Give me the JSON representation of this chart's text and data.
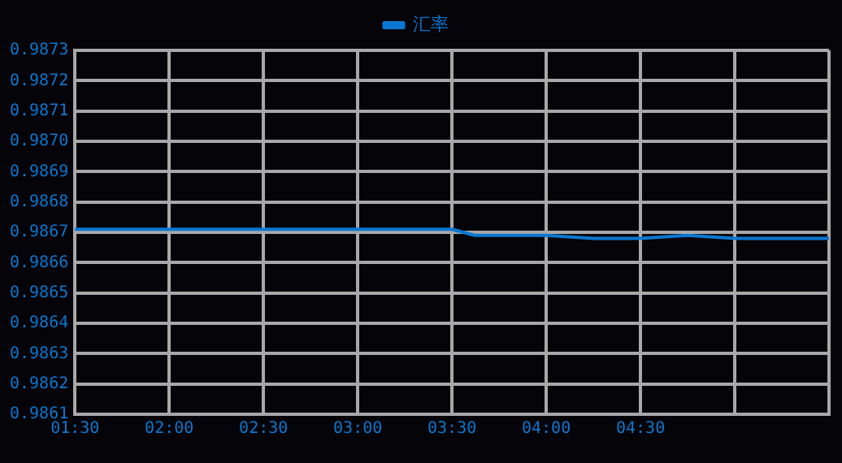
{
  "chart_data": {
    "type": "line",
    "legend": "top",
    "grid": true,
    "marker": "none",
    "line_style": "solid",
    "x": [
      1.5,
      1.75,
      2,
      2.25,
      2.5,
      2.75,
      3,
      3.25,
      3.5,
      3.62,
      3.75,
      4,
      4.25,
      4.5,
      4.75,
      5,
      5.25,
      5.5
    ],
    "series": [
      {
        "name": "汇率",
        "color": "#0a78d2",
        "values": [
          0.98671,
          0.98671,
          0.98671,
          0.98671,
          0.98671,
          0.98671,
          0.98671,
          0.98671,
          0.98671,
          0.98669,
          0.98669,
          0.98669,
          0.98668,
          0.98668,
          0.98669,
          0.98668,
          0.98668,
          0.98668
        ]
      }
    ],
    "xlim": [
      1.5,
      5.5
    ],
    "xticks": [
      {
        "value": 1.5,
        "label": "01:30"
      },
      {
        "value": 2,
        "label": "02:00"
      },
      {
        "value": 2.5,
        "label": "02:30"
      },
      {
        "value": 3,
        "label": "03:00"
      },
      {
        "value": 3.5,
        "label": "03:30"
      },
      {
        "value": 4,
        "label": "04:00"
      },
      {
        "value": 4.5,
        "label": "04:30"
      },
      {
        "value": 5,
        "label": null
      },
      {
        "value": 5.5,
        "label": null
      }
    ],
    "ylim": [
      0.9861,
      0.9873
    ],
    "yticks": [
      0.9861,
      0.9862,
      0.9863,
      0.9864,
      0.9865,
      0.9866,
      0.9867,
      0.9868,
      0.9869,
      {
        "value": 0.987,
        "label": "0.9870"
      },
      0.9871,
      0.9872,
      0.9873
    ]
  }
}
